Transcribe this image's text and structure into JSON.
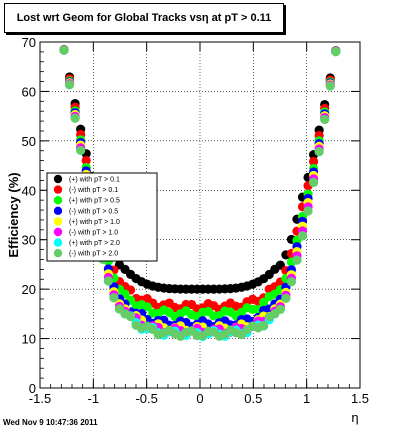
{
  "chart_data": {
    "type": "scatter",
    "title": "Lost wrt Geom for Global Tracks vsη at pT > 0.11",
    "xlabel": "η",
    "ylabel": "Efficiency (%)",
    "xlim": [
      -1.5,
      1.5
    ],
    "ylim": [
      0,
      70
    ],
    "xticks": [
      "-1.5",
      "-1",
      "-0.5",
      "0",
      "0.5",
      "1",
      "1.5"
    ],
    "yticks": [
      "0",
      "10",
      "20",
      "30",
      "40",
      "50",
      "60",
      "70"
    ],
    "grid": true,
    "legend_position": "left-middle",
    "footer": "Wed Nov  9 10:47:36 2011",
    "series": [
      {
        "name": "(+) with pT > 0.1",
        "color": "#000000",
        "base": 20.0,
        "wall": 38.0
      },
      {
        "name": "(-) with pT > 0.1",
        "color": "#ff0000",
        "base": 16.5,
        "wall": 36.0
      },
      {
        "name": "(+) with pT > 0.5",
        "color": "#00ff00",
        "base": 15.0,
        "wall": 34.0
      },
      {
        "name": "(-) with pT > 0.5",
        "color": "#0000ff",
        "base": 13.0,
        "wall": 33.0
      },
      {
        "name": "(+) with pT > 1.0",
        "color": "#ffff00",
        "base": 12.0,
        "wall": 32.0
      },
      {
        "name": "(-) with pT > 1.0",
        "color": "#ff00ff",
        "base": 11.5,
        "wall": 31.0
      },
      {
        "name": "(+) with pT > 2.0",
        "color": "#00ffff",
        "base": 11.0,
        "wall": 30.0
      },
      {
        "name": "(-) with pT > 2.0",
        "color": "#66cc66",
        "base": 11.0,
        "wall": 30.0
      }
    ]
  }
}
